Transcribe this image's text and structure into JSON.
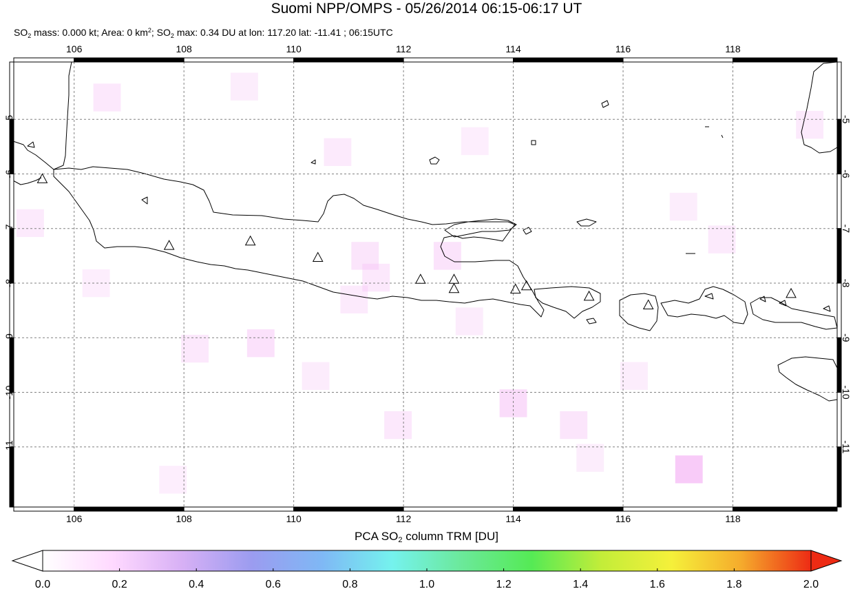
{
  "header": {
    "title": "Suomi NPP/OMPS - 05/26/2014 06:15-06:17 UT",
    "stats": {
      "p1": "SO",
      "s1": "2",
      "p2": " mass: 0.000 kt; Area: 0 km",
      "s2": "2",
      "p3": "; SO",
      "s3": "2",
      "p4": " max: 0.34 DU at lon: 117.20 lat: -11.41 ; 06:15UTC"
    }
  },
  "map": {
    "lon_range": [
      104.9,
      119.9
    ],
    "lat_range": [
      -12.1,
      -3.95
    ],
    "x_ticks": [
      "106",
      "108",
      "110",
      "112",
      "114",
      "116",
      "118"
    ],
    "x_tick_values": [
      106,
      108,
      110,
      112,
      114,
      116,
      118
    ],
    "y_ticks": [
      "-5",
      "-6",
      "-7",
      "-8",
      "-9",
      "-10",
      "-11"
    ],
    "y_tick_values": [
      -5,
      -6,
      -7,
      -8,
      -9,
      -10,
      -11
    ],
    "grid": true,
    "volcano_marker": "triangle-outline",
    "volcanoes": [
      {
        "lon": 105.42,
        "lat": -6.1
      },
      {
        "lon": 107.73,
        "lat": -7.32
      },
      {
        "lon": 109.21,
        "lat": -7.24
      },
      {
        "lon": 110.44,
        "lat": -7.54
      },
      {
        "lon": 112.31,
        "lat": -7.94
      },
      {
        "lon": 112.92,
        "lat": -7.94
      },
      {
        "lon": 112.92,
        "lat": -8.11
      },
      {
        "lon": 114.04,
        "lat": -8.12
      },
      {
        "lon": 114.24,
        "lat": -8.06
      },
      {
        "lon": 115.38,
        "lat": -8.25
      },
      {
        "lon": 116.46,
        "lat": -8.41
      },
      {
        "lon": 119.06,
        "lat": -8.2
      }
    ],
    "so2_pixels": [
      {
        "lon": 106.6,
        "lat": -4.6,
        "v": 0.1
      },
      {
        "lon": 109.1,
        "lat": -4.4,
        "v": 0.06
      },
      {
        "lon": 110.8,
        "lat": -5.6,
        "v": 0.08
      },
      {
        "lon": 111.3,
        "lat": -7.5,
        "v": 0.12
      },
      {
        "lon": 111.5,
        "lat": -7.9,
        "v": 0.1
      },
      {
        "lon": 112.8,
        "lat": -7.5,
        "v": 0.14
      },
      {
        "lon": 111.1,
        "lat": -8.3,
        "v": 0.09
      },
      {
        "lon": 109.4,
        "lat": -9.1,
        "v": 0.16
      },
      {
        "lon": 108.2,
        "lat": -9.2,
        "v": 0.1
      },
      {
        "lon": 110.4,
        "lat": -9.7,
        "v": 0.07
      },
      {
        "lon": 114.0,
        "lat": -10.2,
        "v": 0.2
      },
      {
        "lon": 117.2,
        "lat": -11.41,
        "v": 0.34
      },
      {
        "lon": 116.2,
        "lat": -9.7,
        "v": 0.06
      },
      {
        "lon": 117.1,
        "lat": -6.6,
        "v": 0.06
      },
      {
        "lon": 119.4,
        "lat": -5.1,
        "v": 0.09
      },
      {
        "lon": 117.8,
        "lat": -7.2,
        "v": 0.08
      },
      {
        "lon": 105.2,
        "lat": -6.9,
        "v": 0.08
      },
      {
        "lon": 111.9,
        "lat": -10.6,
        "v": 0.1
      },
      {
        "lon": 115.1,
        "lat": -10.6,
        "v": 0.12
      },
      {
        "lon": 106.4,
        "lat": -8.0,
        "v": 0.05
      },
      {
        "lon": 113.3,
        "lat": -5.4,
        "v": 0.05
      },
      {
        "lon": 115.4,
        "lat": -11.2,
        "v": 0.06
      },
      {
        "lon": 107.8,
        "lat": -11.6,
        "v": 0.05
      },
      {
        "lon": 113.2,
        "lat": -8.7,
        "v": 0.07
      }
    ]
  },
  "colorbar": {
    "title": {
      "p1": "PCA SO",
      "s1": "2",
      "p2": " column TRM [DU]"
    },
    "min": 0.0,
    "max": 2.0,
    "ticks": [
      "0.0",
      "0.2",
      "0.4",
      "0.6",
      "0.8",
      "1.0",
      "1.2",
      "1.4",
      "1.6",
      "1.8",
      "2.0"
    ],
    "colors": [
      "#ffffff",
      "#ffd9ff",
      "#d7b0f5",
      "#9b9cf0",
      "#7fb8f5",
      "#75f2ee",
      "#6be99a",
      "#55ea55",
      "#c3ed39",
      "#f5f03a",
      "#f5ab2c",
      "#ed2b14"
    ]
  }
}
